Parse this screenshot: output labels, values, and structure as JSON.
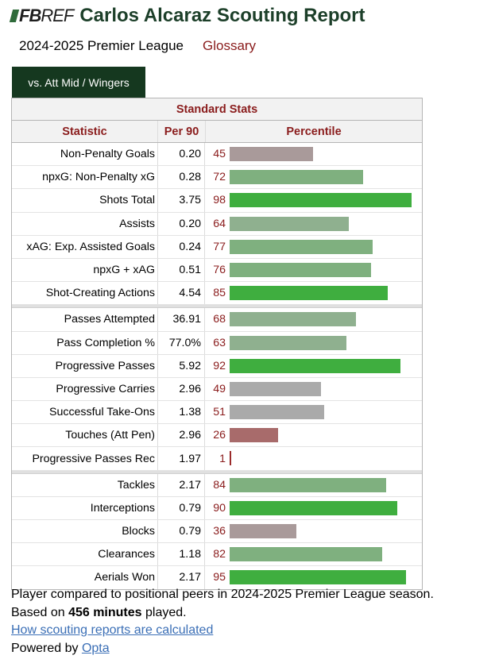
{
  "header": {
    "logo_fb": "FB",
    "logo_ref": "REF",
    "title": "Carlos Alcaraz Scouting Report"
  },
  "subline": {
    "season": "2024-2025 Premier League",
    "glossary": "Glossary"
  },
  "tab": {
    "label": "vs. Att Mid / Wingers"
  },
  "table": {
    "caption": "Standard Stats",
    "headers": {
      "statistic": "Statistic",
      "per90": "Per 90",
      "percentile": "Percentile"
    },
    "groups": [
      [
        {
          "stat": "Non-Penalty Goals",
          "per90": "0.20",
          "pct": 45
        },
        {
          "stat": "npxG: Non-Penalty xG",
          "per90": "0.28",
          "pct": 72
        },
        {
          "stat": "Shots Total",
          "per90": "3.75",
          "pct": 98
        },
        {
          "stat": "Assists",
          "per90": "0.20",
          "pct": 64
        },
        {
          "stat": "xAG: Exp. Assisted Goals",
          "per90": "0.24",
          "pct": 77
        },
        {
          "stat": "npxG + xAG",
          "per90": "0.51",
          "pct": 76
        },
        {
          "stat": "Shot-Creating Actions",
          "per90": "4.54",
          "pct": 85
        }
      ],
      [
        {
          "stat": "Passes Attempted",
          "per90": "36.91",
          "pct": 68
        },
        {
          "stat": "Pass Completion %",
          "per90": "77.0%",
          "pct": 63
        },
        {
          "stat": "Progressive Passes",
          "per90": "5.92",
          "pct": 92
        },
        {
          "stat": "Progressive Carries",
          "per90": "2.96",
          "pct": 49
        },
        {
          "stat": "Successful Take-Ons",
          "per90": "1.38",
          "pct": 51
        },
        {
          "stat": "Touches (Att Pen)",
          "per90": "2.96",
          "pct": 26
        },
        {
          "stat": "Progressive Passes Rec",
          "per90": "1.97",
          "pct": 1
        }
      ],
      [
        {
          "stat": "Tackles",
          "per90": "2.17",
          "pct": 84
        },
        {
          "stat": "Interceptions",
          "per90": "0.79",
          "pct": 90
        },
        {
          "stat": "Blocks",
          "per90": "0.79",
          "pct": 36
        },
        {
          "stat": "Clearances",
          "per90": "1.18",
          "pct": 82
        },
        {
          "stat": "Aerials Won",
          "per90": "2.17",
          "pct": 95
        }
      ]
    ]
  },
  "colors": {
    "bar_top": "#3fae3f",
    "bar_good": "#7fb07f",
    "bar_mid_green": "#8fb08f",
    "bar_avg": "#aaaaaa",
    "bar_low": "#a99a9a",
    "bar_poor": "#a86b6b",
    "bar_worst": "#9b2b2b"
  },
  "footer": {
    "line1": "Player compared to positional peers in 2024-2025 Premier League season.",
    "line2_prefix": "Based on ",
    "line2_bold": "456 minutes",
    "line2_suffix": " played.",
    "link": "How scouting reports are calculated",
    "powered_prefix": "Powered by ",
    "powered_link": "Opta"
  }
}
